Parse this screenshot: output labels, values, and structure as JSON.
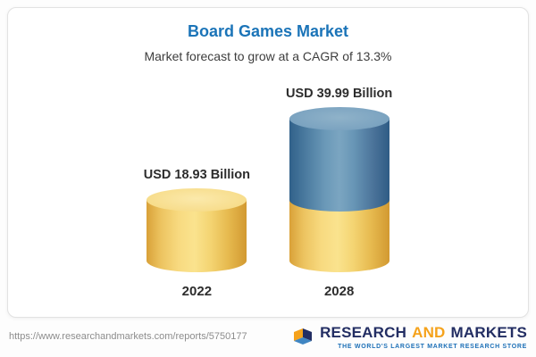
{
  "header": {
    "title": "Board Games Market",
    "subtitle": "Market forecast to grow at a CAGR of 13.3%"
  },
  "chart_data": {
    "type": "bar",
    "title": "Board Games Market",
    "subtitle": "Market forecast to grow at a CAGR of 13.3%",
    "unit": "USD Billion",
    "cagr": "13.3%",
    "categories": [
      "2022",
      "2028"
    ],
    "values": [
      18.93,
      39.99
    ],
    "value_labels": [
      "USD 18.93 Billion",
      "USD 39.99 Billion"
    ],
    "bars": [
      {
        "segments": [
          {
            "color": "gold",
            "value": 18.93
          }
        ]
      },
      {
        "segments": [
          {
            "color": "blue",
            "value": 21.06
          },
          {
            "color": "gold",
            "value": 18.93
          }
        ]
      }
    ],
    "legend": "none",
    "grid": false
  },
  "footer": {
    "url": "https://www.researchandmarkets.com/reports/5750177",
    "logo": {
      "word1": "RESEARCH",
      "word2": "AND",
      "word3": "MARKETS",
      "tagline": "THE WORLD'S LARGEST MARKET RESEARCH STORE"
    }
  },
  "colors": {
    "title_blue": "#1b74b8",
    "cylinder_gold": "#f3cf6b",
    "cylinder_blue": "#5b89ab",
    "logo_navy": "#232e63",
    "logo_orange": "#f5a21b",
    "logo_tagline_blue": "#1d70b7"
  }
}
